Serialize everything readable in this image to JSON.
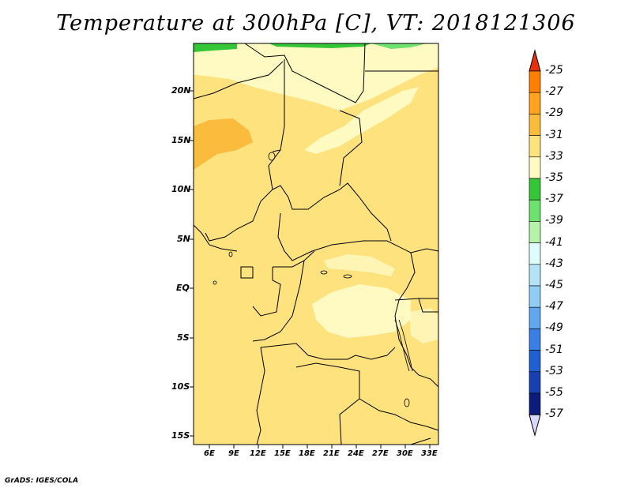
{
  "title": "Temperature at 300hPa [C], VT: 2018121306",
  "credit": "GrADS: IGES/COLA",
  "map": {
    "lat_ticks": [
      "20N",
      "15N",
      "10N",
      "5N",
      "EQ",
      "5S",
      "10S",
      "15S"
    ],
    "lon_ticks": [
      "6E",
      "9E",
      "12E",
      "15E",
      "18E",
      "21E",
      "24E",
      "27E",
      "30E",
      "33E"
    ],
    "extent": {
      "lon": [
        4,
        34
      ],
      "lat": [
        -16,
        25
      ]
    }
  },
  "colorbar": {
    "labels": [
      "-25",
      "-27",
      "-29",
      "-31",
      "-33",
      "-35",
      "-37",
      "-39",
      "-41",
      "-43",
      "-45",
      "-47",
      "-49",
      "-51",
      "-53",
      "-55",
      "-57"
    ],
    "colors": [
      "#e8300a",
      "#ff7f00",
      "#ffa41c",
      "#fbbc3e",
      "#fde27e",
      "#fefac2",
      "#35c637",
      "#6ee26e",
      "#b4f3a9",
      "#e0fbfb",
      "#b5e3f6",
      "#90cdf4",
      "#5fa8f0",
      "#3a7fe6",
      "#1f60d3",
      "#1740b0",
      "#0c1c7a"
    ],
    "under_color": "#d8d8ff",
    "over_color": "#e8300a"
  }
}
